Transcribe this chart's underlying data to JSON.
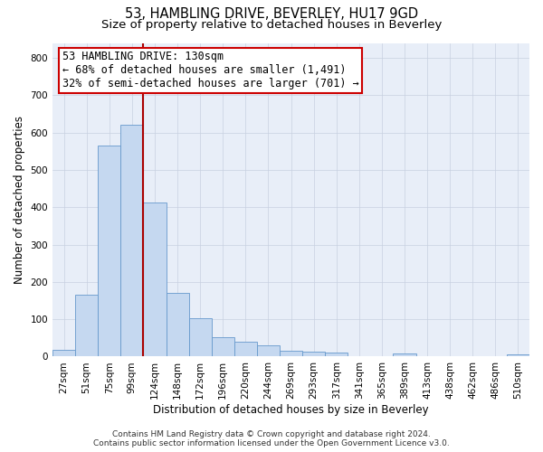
{
  "title_line1": "53, HAMBLING DRIVE, BEVERLEY, HU17 9GD",
  "title_line2": "Size of property relative to detached houses in Beverley",
  "xlabel": "Distribution of detached houses by size in Beverley",
  "ylabel": "Number of detached properties",
  "categories": [
    "27sqm",
    "51sqm",
    "75sqm",
    "99sqm",
    "124sqm",
    "148sqm",
    "172sqm",
    "196sqm",
    "220sqm",
    "244sqm",
    "269sqm",
    "293sqm",
    "317sqm",
    "341sqm",
    "365sqm",
    "389sqm",
    "413sqm",
    "438sqm",
    "462sqm",
    "486sqm",
    "510sqm"
  ],
  "values": [
    18,
    165,
    565,
    620,
    413,
    170,
    103,
    51,
    39,
    31,
    15,
    13,
    10,
    0,
    0,
    8,
    0,
    0,
    0,
    0,
    7
  ],
  "bar_color": "#c5d8f0",
  "bar_edge_color": "#6699cc",
  "vline_color": "#aa0000",
  "annotation_line1": "53 HAMBLING DRIVE: 130sqm",
  "annotation_line2": "← 68% of detached houses are smaller (1,491)",
  "annotation_line3": "32% of semi-detached houses are larger (701) →",
  "annotation_box_color": "white",
  "annotation_box_edge_color": "#cc0000",
  "ylim": [
    0,
    840
  ],
  "yticks": [
    0,
    100,
    200,
    300,
    400,
    500,
    600,
    700,
    800
  ],
  "grid_color": "#c8d0e0",
  "background_color": "#e8eef8",
  "footer_text": "Contains HM Land Registry data © Crown copyright and database right 2024.\nContains public sector information licensed under the Open Government Licence v3.0.",
  "title_fontsize": 10.5,
  "subtitle_fontsize": 9.5,
  "axis_label_fontsize": 8.5,
  "tick_fontsize": 7.5,
  "footer_fontsize": 6.5,
  "annot_fontsize": 8.5
}
